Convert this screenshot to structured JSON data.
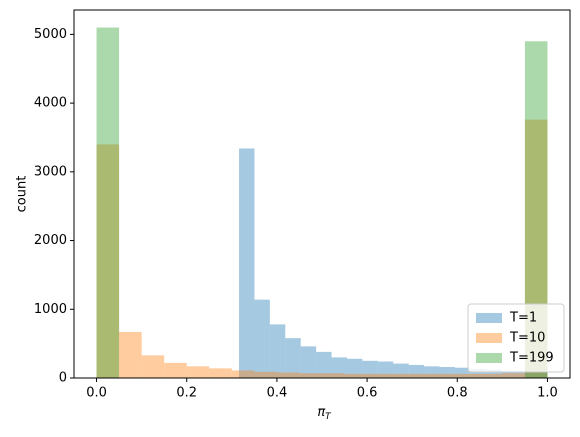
{
  "chart_data": {
    "type": "histogram",
    "xlabel": {
      "main": "π",
      "sub": "T"
    },
    "ylabel": "count",
    "xlim": [
      -0.05,
      1.05
    ],
    "ylim": [
      0,
      5355
    ],
    "xticks": [
      {
        "value": 0,
        "label": "0.0"
      },
      {
        "value": 0.2,
        "label": "0.2"
      },
      {
        "value": 0.4,
        "label": "0.4"
      },
      {
        "value": 0.6,
        "label": "0.6"
      },
      {
        "value": 0.8,
        "label": "0.8"
      },
      {
        "value": 1,
        "label": "1.0"
      }
    ],
    "yticks": [
      0,
      1000,
      2000,
      3000,
      4000,
      5000
    ],
    "opacity": 0.4,
    "legend": "lower right",
    "series": [
      {
        "name": "T=1",
        "color": "#1f77b4",
        "bins": [
          0.316,
          0.3502,
          0.3844,
          0.4186,
          0.4528,
          0.487,
          0.5212,
          0.5554,
          0.5896,
          0.6238,
          0.658,
          0.6922,
          0.7264,
          0.7606,
          0.7948,
          0.829,
          0.8632,
          0.8974,
          0.9316,
          0.9658,
          1.0
        ],
        "values": [
          3340,
          1140,
          780,
          580,
          460,
          380,
          300,
          280,
          250,
          240,
          210,
          190,
          170,
          160,
          150,
          130,
          120,
          100,
          90,
          80
        ]
      },
      {
        "name": "T=10",
        "color": "#ff7f0e",
        "bins": [
          0,
          0.05,
          0.1,
          0.15,
          0.2,
          0.25,
          0.3,
          0.35,
          0.4,
          0.45,
          0.5,
          0.55,
          0.6,
          0.65,
          0.7,
          0.75,
          0.8,
          0.85,
          0.9,
          0.95,
          1.0
        ],
        "values": [
          3400,
          670,
          330,
          220,
          170,
          140,
          110,
          90,
          80,
          70,
          70,
          60,
          60,
          60,
          60,
          60,
          60,
          60,
          70,
          3760
        ]
      },
      {
        "name": "T=199",
        "color": "#2ca02c",
        "bins": [
          0,
          0.05,
          0.1,
          0.15,
          0.2,
          0.25,
          0.3,
          0.35,
          0.4,
          0.45,
          0.5,
          0.55,
          0.6,
          0.65,
          0.7,
          0.75,
          0.8,
          0.85,
          0.9,
          0.95,
          1.0
        ],
        "values": [
          5100,
          0,
          0,
          0,
          0,
          0,
          0,
          0,
          0,
          0,
          0,
          0,
          0,
          0,
          0,
          0,
          0,
          0,
          0,
          4900
        ]
      }
    ]
  }
}
